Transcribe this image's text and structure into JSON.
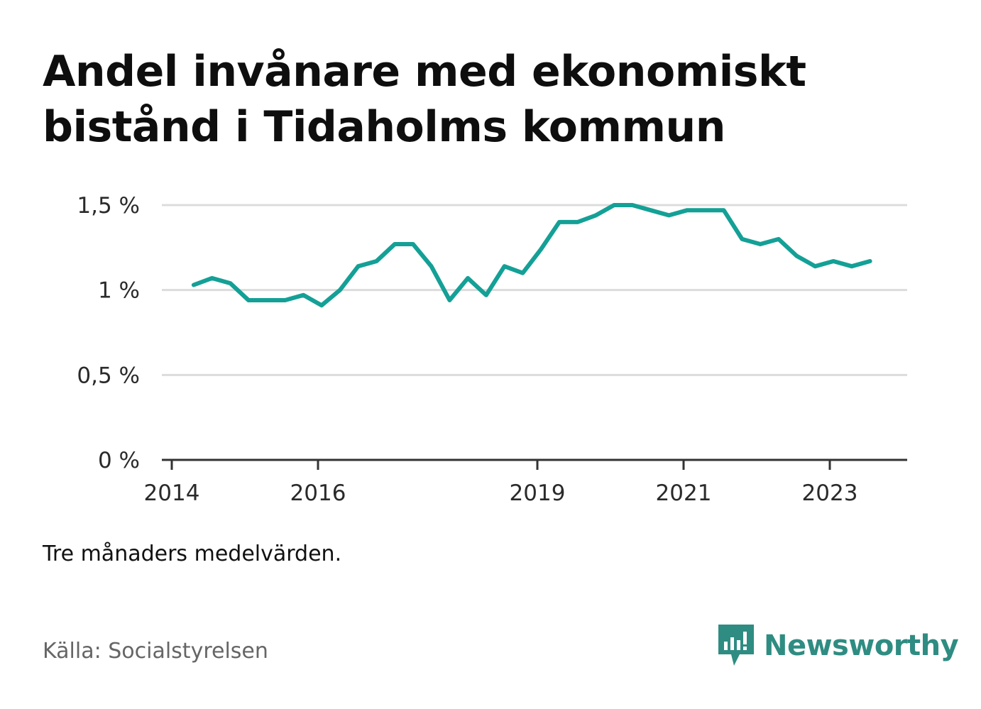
{
  "title": "Andel invånare med ekonomiskt bistånd i Tidaholms kommun",
  "note": "Tre månaders medelvärden.",
  "source": "Källa: Socialstyrelsen",
  "brand": {
    "name": "Newsworthy",
    "icon": "newsworthy-logo-icon",
    "color": "#2f8c82"
  },
  "chart_data": {
    "type": "line",
    "color": "#14a096",
    "grid": true,
    "xlim": [
      2014.0,
      2024.1
    ],
    "ylim": [
      0,
      1.5
    ],
    "y_ticks": [
      {
        "value": 0,
        "label": "0 %"
      },
      {
        "value": 0.5,
        "label": "0,5 %"
      },
      {
        "value": 1.0,
        "label": "1 %"
      },
      {
        "value": 1.5,
        "label": "1,5 %"
      }
    ],
    "x_ticks": [
      {
        "value": 2014,
        "label": "2014"
      },
      {
        "value": 2016,
        "label": "2016"
      },
      {
        "value": 2019,
        "label": "2019"
      },
      {
        "value": 2021,
        "label": "2021"
      },
      {
        "value": 2023,
        "label": "2023"
      }
    ],
    "x": [
      2014.3,
      2014.55,
      2014.8,
      2015.05,
      2015.3,
      2015.55,
      2015.8,
      2016.05,
      2016.3,
      2016.55,
      2016.8,
      2017.05,
      2017.3,
      2017.55,
      2017.8,
      2018.05,
      2018.3,
      2018.55,
      2018.8,
      2019.05,
      2019.3,
      2019.55,
      2019.8,
      2020.05,
      2020.3,
      2020.55,
      2020.8,
      2021.05,
      2021.3,
      2021.55,
      2021.8,
      2022.05,
      2022.3,
      2022.55,
      2022.8,
      2023.05,
      2023.3,
      2023.55
    ],
    "y": [
      1.03,
      1.07,
      1.04,
      0.94,
      0.94,
      0.94,
      0.97,
      0.91,
      1.0,
      1.14,
      1.17,
      1.27,
      1.27,
      1.14,
      0.94,
      1.07,
      0.97,
      1.14,
      1.1,
      1.24,
      1.4,
      1.4,
      1.44,
      1.5,
      1.5,
      1.47,
      1.44,
      1.47,
      1.47,
      1.47,
      1.3,
      1.27,
      1.3,
      1.2,
      1.14,
      1.17,
      1.14,
      1.17
    ]
  }
}
